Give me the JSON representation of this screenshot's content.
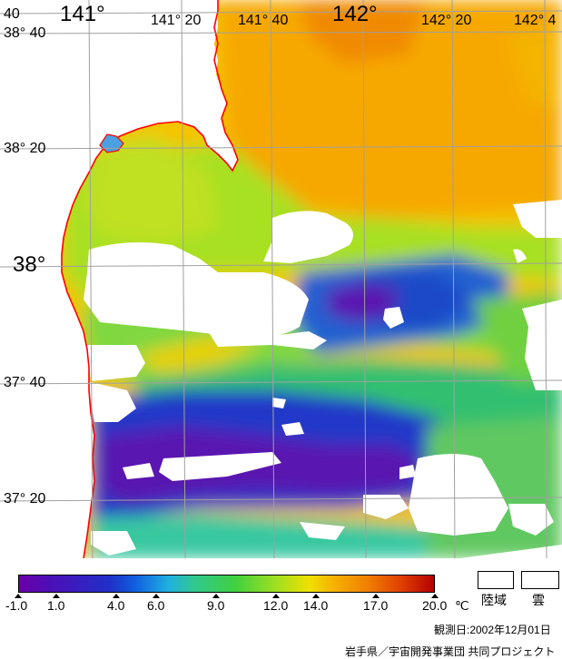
{
  "map": {
    "lon_labels": [
      "141°",
      "141° 20",
      "141° 40",
      "142°",
      "142° 20",
      "142° 4"
    ],
    "lat_labels": [
      "38° 40",
      "38° 20",
      "38°",
      "37° 40",
      "37° 20"
    ],
    "corner_label": "40"
  },
  "legend": {
    "ticks": [
      "-1.0",
      "1.0",
      "4.0",
      "6.0",
      "9.0",
      "12.0",
      "14.0",
      "17.0",
      "20.0"
    ],
    "unit": "℃",
    "land_label": "陸域",
    "cloud_label": "雲"
  },
  "footer": {
    "date_line": "観測日:2002年12月01日",
    "credit": "岩手県／宇宙開発事業団 共同プロジェクト"
  },
  "colors": {
    "coastline": "#ff0000",
    "grid": "#a0a0a0",
    "cold": "#6a00a8",
    "warm": "#b40000"
  }
}
